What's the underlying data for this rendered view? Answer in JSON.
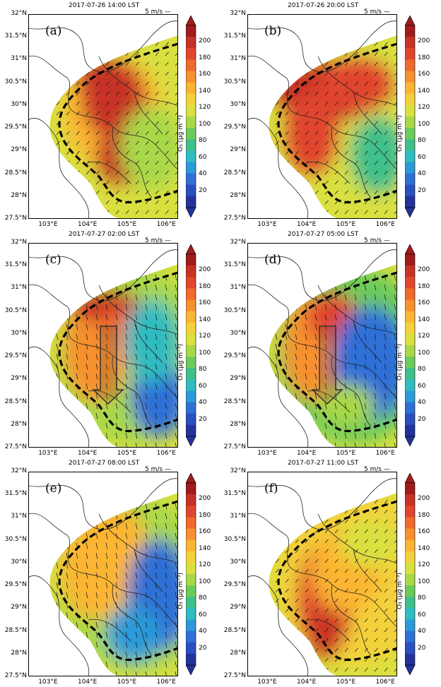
{
  "panels": [
    {
      "label": "(a)",
      "title": "2017-07-26 14:00 LST",
      "variant": "a"
    },
    {
      "label": "(b)",
      "title": "2017-07-26 20:00 LST",
      "variant": "b"
    },
    {
      "label": "(c)",
      "title": "2017-07-27 02:00 LST",
      "variant": "c",
      "arrow_box": true
    },
    {
      "label": "(d)",
      "title": "2017-07-27 05:00 LST",
      "variant": "d",
      "arrow_box": true
    },
    {
      "label": "(e)",
      "title": "2017-07-27 08:00 LST",
      "variant": "e"
    },
    {
      "label": "(f)",
      "title": "2017-07-27 11:00 LST",
      "variant": "f"
    }
  ],
  "scale_label": "5 m/s",
  "lat_ticks": [
    "32°N",
    "31.5°N",
    "31°N",
    "30.5°N",
    "30°N",
    "29.5°N",
    "29°N",
    "28.5°N",
    "28°N",
    "27.5°N"
  ],
  "lon_ticks": [
    "103°E",
    "104°E",
    "105°E",
    "106°E"
  ],
  "colorbar": {
    "ticks": [
      "200",
      "180",
      "160",
      "140",
      "120",
      "100",
      "80",
      "60",
      "40",
      "20"
    ],
    "unit": "O₃ (μg m⁻³)",
    "colors": [
      "#a01c1c",
      "#c83226",
      "#e0452d",
      "#ef6a2c",
      "#f7902e",
      "#fbb532",
      "#f3d13a",
      "#d9e03f",
      "#a8d848",
      "#6ccb5b",
      "#3fc08a",
      "#2fbcc0",
      "#2c9ad8",
      "#2f6fd6",
      "#2a4fc0",
      "#23339b"
    ]
  }
}
